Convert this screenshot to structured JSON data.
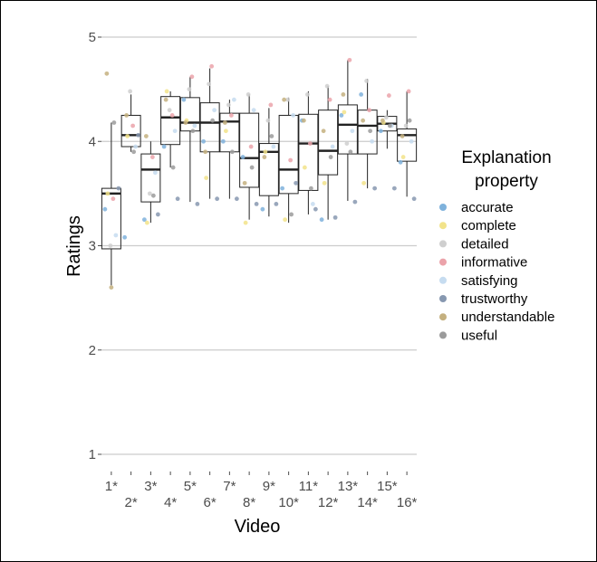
{
  "chart_data": {
    "type": "box",
    "title": "",
    "xlabel": "Video",
    "ylabel": "Ratings",
    "ylim": [
      0.8,
      5.2
    ],
    "yticks": [
      1,
      2,
      3,
      4,
      5
    ],
    "grid": true,
    "legend_position": "right",
    "categories": [
      "1*",
      "2*",
      "3*",
      "4*",
      "5*",
      "6*",
      "7*",
      "8*",
      "9*",
      "10*",
      "11*",
      "12*",
      "13*",
      "14*",
      "15*",
      "16*"
    ],
    "boxes": [
      {
        "q1": 2.97,
        "median": 3.5,
        "q3": 3.55,
        "lower": 2.62,
        "upper": 4.18
      },
      {
        "q1": 3.95,
        "median": 4.06,
        "q3": 4.25,
        "lower": 3.9,
        "upper": 4.45
      },
      {
        "q1": 3.42,
        "median": 3.73,
        "q3": 3.88,
        "lower": 3.22,
        "upper": 4.0
      },
      {
        "q1": 3.97,
        "median": 4.23,
        "q3": 4.43,
        "lower": 3.75,
        "upper": 4.48
      },
      {
        "q1": 4.1,
        "median": 4.18,
        "q3": 4.42,
        "lower": 3.42,
        "upper": 4.62
      },
      {
        "q1": 3.9,
        "median": 4.18,
        "q3": 4.37,
        "lower": 3.45,
        "upper": 4.7
      },
      {
        "q1": 3.9,
        "median": 4.19,
        "q3": 4.27,
        "lower": 3.45,
        "upper": 4.4
      },
      {
        "q1": 3.56,
        "median": 3.84,
        "q3": 4.27,
        "lower": 3.25,
        "upper": 4.45
      },
      {
        "q1": 3.48,
        "median": 3.9,
        "q3": 3.98,
        "lower": 3.28,
        "upper": 4.32
      },
      {
        "q1": 3.5,
        "median": 3.73,
        "q3": 4.25,
        "lower": 3.22,
        "upper": 4.42
      },
      {
        "q1": 3.53,
        "median": 3.98,
        "q3": 4.26,
        "lower": 3.3,
        "upper": 4.48
      },
      {
        "q1": 3.68,
        "median": 3.91,
        "q3": 4.3,
        "lower": 3.25,
        "upper": 4.53
      },
      {
        "q1": 3.88,
        "median": 4.16,
        "q3": 4.35,
        "lower": 3.43,
        "upper": 4.78
      },
      {
        "q1": 3.88,
        "median": 4.15,
        "q3": 4.3,
        "lower": 3.55,
        "upper": 4.6
      },
      {
        "q1": 4.1,
        "median": 4.17,
        "q3": 4.24,
        "lower": 3.93,
        "upper": 4.3
      },
      {
        "q1": 3.81,
        "median": 4.06,
        "q3": 4.12,
        "lower": 3.47,
        "upper": 4.48
      }
    ],
    "points": [
      [
        {
          "s": "accurate",
          "y": 3.35
        },
        {
          "s": "complete",
          "y": 3.5
        },
        {
          "s": "detailed",
          "y": 3.0
        },
        {
          "s": "informative",
          "y": 3.45
        },
        {
          "s": "satisfying",
          "y": 3.1
        },
        {
          "s": "trustworthy",
          "y": 3.55
        },
        {
          "s": "understandable",
          "y": 4.65
        },
        {
          "s": "useful",
          "y": 4.18
        },
        {
          "s": "understandable",
          "y": 2.6
        }
      ],
      [
        {
          "s": "accurate",
          "y": 3.08
        },
        {
          "s": "complete",
          "y": 4.05
        },
        {
          "s": "detailed",
          "y": 4.48
        },
        {
          "s": "informative",
          "y": 4.15
        },
        {
          "s": "satisfying",
          "y": 3.95
        },
        {
          "s": "trustworthy",
          "y": 4.06
        },
        {
          "s": "understandable",
          "y": 4.25
        },
        {
          "s": "useful",
          "y": 3.9
        }
      ],
      [
        {
          "s": "accurate",
          "y": 3.25
        },
        {
          "s": "complete",
          "y": 3.22
        },
        {
          "s": "detailed",
          "y": 3.5
        },
        {
          "s": "informative",
          "y": 3.85
        },
        {
          "s": "satisfying",
          "y": 3.7
        },
        {
          "s": "trustworthy",
          "y": 3.3
        },
        {
          "s": "understandable",
          "y": 4.05
        },
        {
          "s": "useful",
          "y": 3.48
        }
      ],
      [
        {
          "s": "accurate",
          "y": 3.95
        },
        {
          "s": "complete",
          "y": 4.48
        },
        {
          "s": "detailed",
          "y": 4.3
        },
        {
          "s": "informative",
          "y": 4.25
        },
        {
          "s": "satisfying",
          "y": 4.1
        },
        {
          "s": "trustworthy",
          "y": 3.45
        },
        {
          "s": "understandable",
          "y": 4.4
        },
        {
          "s": "useful",
          "y": 3.75
        }
      ],
      [
        {
          "s": "accurate",
          "y": 4.4
        },
        {
          "s": "complete",
          "y": 4.2
        },
        {
          "s": "detailed",
          "y": 4.5
        },
        {
          "s": "informative",
          "y": 4.62
        },
        {
          "s": "satisfying",
          "y": 4.15
        },
        {
          "s": "trustworthy",
          "y": 3.4
        },
        {
          "s": "understandable",
          "y": 4.18
        },
        {
          "s": "useful",
          "y": 4.1
        }
      ],
      [
        {
          "s": "accurate",
          "y": 4.0
        },
        {
          "s": "complete",
          "y": 3.65
        },
        {
          "s": "detailed",
          "y": 4.55
        },
        {
          "s": "informative",
          "y": 4.72
        },
        {
          "s": "satisfying",
          "y": 4.3
        },
        {
          "s": "trustworthy",
          "y": 3.45
        },
        {
          "s": "understandable",
          "y": 3.9
        },
        {
          "s": "useful",
          "y": 4.2
        }
      ],
      [
        {
          "s": "accurate",
          "y": 4.0
        },
        {
          "s": "complete",
          "y": 4.1
        },
        {
          "s": "detailed",
          "y": 4.35
        },
        {
          "s": "informative",
          "y": 4.25
        },
        {
          "s": "satisfying",
          "y": 4.4
        },
        {
          "s": "trustworthy",
          "y": 3.45
        },
        {
          "s": "understandable",
          "y": 4.18
        },
        {
          "s": "useful",
          "y": 3.9
        }
      ],
      [
        {
          "s": "accurate",
          "y": 3.85
        },
        {
          "s": "complete",
          "y": 3.22
        },
        {
          "s": "detailed",
          "y": 4.45
        },
        {
          "s": "informative",
          "y": 3.95
        },
        {
          "s": "satisfying",
          "y": 4.3
        },
        {
          "s": "trustworthy",
          "y": 3.4
        },
        {
          "s": "understandable",
          "y": 3.6
        },
        {
          "s": "useful",
          "y": 3.75
        }
      ],
      [
        {
          "s": "accurate",
          "y": 3.35
        },
        {
          "s": "complete",
          "y": 3.9
        },
        {
          "s": "detailed",
          "y": 4.2
        },
        {
          "s": "informative",
          "y": 4.35
        },
        {
          "s": "satisfying",
          "y": 3.95
        },
        {
          "s": "trustworthy",
          "y": 3.4
        },
        {
          "s": "understandable",
          "y": 3.85
        },
        {
          "s": "useful",
          "y": 4.05
        }
      ],
      [
        {
          "s": "accurate",
          "y": 3.55
        },
        {
          "s": "complete",
          "y": 3.25
        },
        {
          "s": "detailed",
          "y": 4.4
        },
        {
          "s": "informative",
          "y": 3.82
        },
        {
          "s": "satisfying",
          "y": 4.25
        },
        {
          "s": "trustworthy",
          "y": 3.6
        },
        {
          "s": "understandable",
          "y": 4.4
        },
        {
          "s": "useful",
          "y": 3.3
        }
      ],
      [
        {
          "s": "accurate",
          "y": 4.2
        },
        {
          "s": "complete",
          "y": 3.75
        },
        {
          "s": "detailed",
          "y": 4.45
        },
        {
          "s": "informative",
          "y": 3.98
        },
        {
          "s": "satisfying",
          "y": 3.4
        },
        {
          "s": "trustworthy",
          "y": 3.35
        },
        {
          "s": "understandable",
          "y": 4.2
        },
        {
          "s": "useful",
          "y": 3.55
        }
      ],
      [
        {
          "s": "accurate",
          "y": 3.25
        },
        {
          "s": "complete",
          "y": 3.6
        },
        {
          "s": "detailed",
          "y": 4.53
        },
        {
          "s": "informative",
          "y": 4.4
        },
        {
          "s": "satisfying",
          "y": 3.95
        },
        {
          "s": "trustworthy",
          "y": 3.27
        },
        {
          "s": "understandable",
          "y": 4.1
        },
        {
          "s": "useful",
          "y": 3.85
        }
      ],
      [
        {
          "s": "accurate",
          "y": 4.25
        },
        {
          "s": "complete",
          "y": 4.28
        },
        {
          "s": "detailed",
          "y": 3.98
        },
        {
          "s": "informative",
          "y": 4.78
        },
        {
          "s": "satisfying",
          "y": 4.1
        },
        {
          "s": "trustworthy",
          "y": 3.42
        },
        {
          "s": "understandable",
          "y": 4.45
        },
        {
          "s": "useful",
          "y": 3.9
        }
      ],
      [
        {
          "s": "accurate",
          "y": 4.45
        },
        {
          "s": "complete",
          "y": 3.6
        },
        {
          "s": "detailed",
          "y": 4.58
        },
        {
          "s": "informative",
          "y": 4.3
        },
        {
          "s": "satisfying",
          "y": 4.0
        },
        {
          "s": "trustworthy",
          "y": 3.55
        },
        {
          "s": "understandable",
          "y": 4.2
        },
        {
          "s": "useful",
          "y": 4.1
        }
      ],
      [
        {
          "s": "accurate",
          "y": 4.1
        },
        {
          "s": "complete",
          "y": 4.18
        },
        {
          "s": "detailed",
          "y": 4.23
        },
        {
          "s": "informative",
          "y": 4.44
        },
        {
          "s": "satisfying",
          "y": 4.15
        },
        {
          "s": "trustworthy",
          "y": 3.55
        },
        {
          "s": "understandable",
          "y": 4.2
        },
        {
          "s": "useful",
          "y": 4.15
        }
      ],
      [
        {
          "s": "accurate",
          "y": 3.8
        },
        {
          "s": "complete",
          "y": 3.85
        },
        {
          "s": "detailed",
          "y": 4.15
        },
        {
          "s": "informative",
          "y": 4.48
        },
        {
          "s": "satisfying",
          "y": 4.0
        },
        {
          "s": "trustworthy",
          "y": 3.45
        },
        {
          "s": "understandable",
          "y": 4.05
        },
        {
          "s": "useful",
          "y": 4.2
        }
      ]
    ],
    "legend": {
      "title_line1": "Explanation",
      "title_line2": "property",
      "items": [
        {
          "label": "accurate",
          "color": "#7fb2dc"
        },
        {
          "label": "complete",
          "color": "#f2e38a"
        },
        {
          "label": "detailed",
          "color": "#cfcfcf"
        },
        {
          "label": "informative",
          "color": "#eba3aa"
        },
        {
          "label": "satisfying",
          "color": "#c6dcf0"
        },
        {
          "label": "trustworthy",
          "color": "#8798b0"
        },
        {
          "label": "understandable",
          "color": "#c4b07f"
        },
        {
          "label": "useful",
          "color": "#9b9b9b"
        }
      ]
    }
  }
}
